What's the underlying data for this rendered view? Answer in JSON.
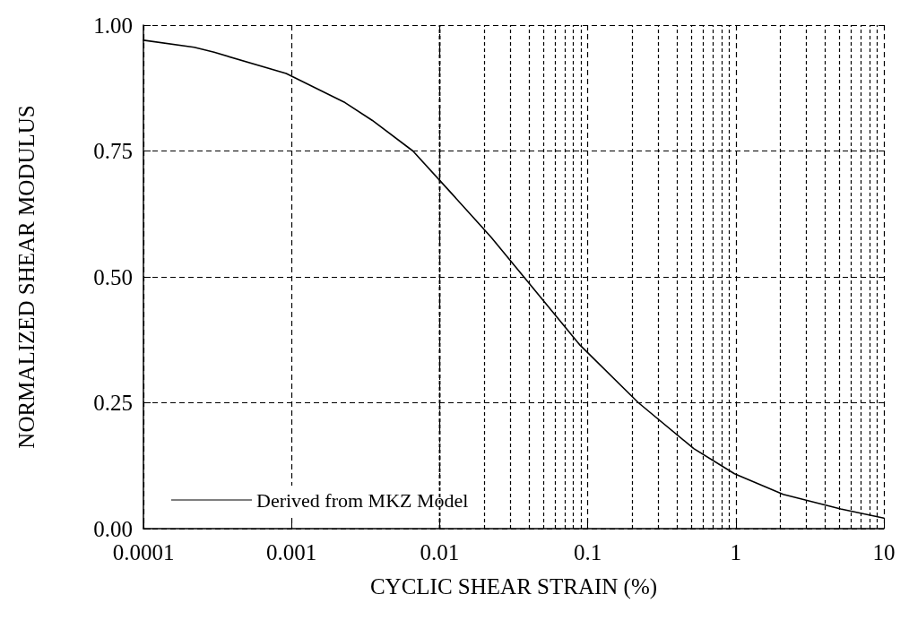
{
  "chart_data": {
    "type": "line",
    "xlabel": "CYCLIC SHEAR STRAIN (%)",
    "ylabel": "NORMALIZED SHEAR MODULUS",
    "log": "x",
    "grid": true,
    "legend": "bottom left",
    "marker": "none",
    "line_style": "solid",
    "xlim": [
      0.0001,
      10
    ],
    "xticks": [
      0.0001,
      0.001,
      0.01,
      0.1,
      1,
      10
    ],
    "ylim": [
      0,
      1
    ],
    "yticks": [
      {
        "value": 0,
        "label": "0.00"
      },
      {
        "value": 0.25,
        "label": "0.25"
      },
      {
        "value": 0.5,
        "label": "0.50"
      },
      {
        "value": 0.75,
        "label": "0.75"
      },
      {
        "value": 1,
        "label": "1.00"
      }
    ],
    "series": [
      {
        "name": "Derived from MKZ Model",
        "color": "#000000",
        "x": [
          0.0001,
          0.00022,
          0.0003,
          0.00092,
          0.0023,
          0.0035,
          0.0066,
          0.0112,
          0.0224,
          0.033,
          0.038,
          0.089,
          0.22,
          0.52,
          0.98,
          2.09,
          5.1,
          10
        ],
        "values": [
          0.97,
          0.956,
          0.946,
          0.904,
          0.846,
          0.811,
          0.75,
          0.676,
          0.578,
          0.518,
          0.496,
          0.364,
          0.25,
          0.159,
          0.109,
          0.068,
          0.039,
          0.021
        ]
      }
    ]
  }
}
